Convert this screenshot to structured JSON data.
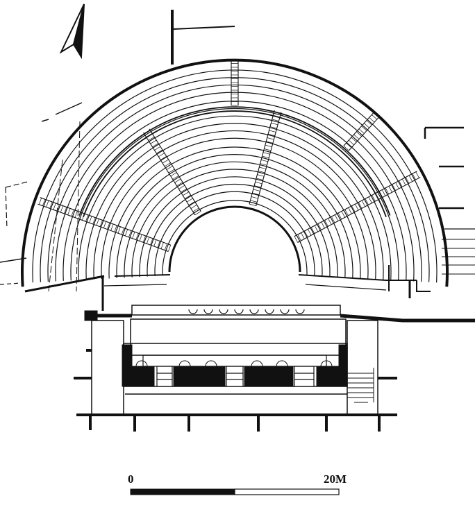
{
  "scale": {
    "start_label": "0",
    "end_label": "20M"
  },
  "north_arrow": {
    "icon": "north-arrow-icon"
  },
  "colors": {
    "ink": "#111111",
    "paper": "#ffffff"
  }
}
